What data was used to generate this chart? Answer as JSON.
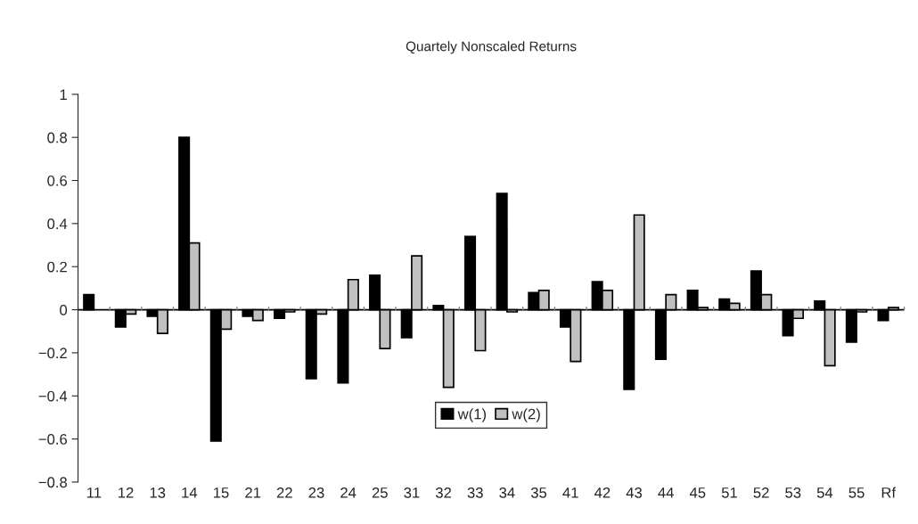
{
  "chart_data": {
    "type": "bar",
    "title": "Quartely Nonscaled Returns",
    "categories": [
      "11",
      "12",
      "13",
      "14",
      "15",
      "21",
      "22",
      "23",
      "24",
      "25",
      "31",
      "32",
      "33",
      "34",
      "35",
      "41",
      "42",
      "43",
      "44",
      "45",
      "51",
      "52",
      "53",
      "54",
      "55",
      "Rf"
    ],
    "series": [
      {
        "name": "w(1)",
        "color": "#000000",
        "values": [
          0.07,
          -0.08,
          -0.03,
          0.8,
          -0.61,
          -0.03,
          -0.04,
          -0.32,
          -0.34,
          0.16,
          -0.13,
          0.02,
          0.34,
          0.54,
          0.08,
          -0.08,
          0.13,
          -0.37,
          -0.23,
          0.09,
          0.05,
          0.18,
          -0.12,
          0.04,
          -0.15,
          -0.05
        ]
      },
      {
        "name": "w(2)",
        "color": "#c0c0c0",
        "values": [
          null,
          -0.02,
          -0.11,
          0.31,
          -0.09,
          -0.05,
          -0.01,
          -0.02,
          0.14,
          -0.18,
          0.25,
          -0.36,
          -0.19,
          -0.01,
          0.09,
          -0.24,
          0.09,
          0.44,
          0.07,
          0.01,
          0.03,
          0.07,
          -0.04,
          -0.26,
          -0.01,
          0.01
        ]
      }
    ],
    "ylim": [
      -0.8,
      1
    ],
    "yticks": [
      -0.8,
      -0.6,
      -0.4,
      -0.2,
      0,
      0.2,
      0.4,
      0.6,
      0.8,
      1
    ],
    "ref_lines": [
      {
        "axis": "y",
        "value": 0,
        "color": "#000000"
      }
    ],
    "grid": false,
    "legend": "bottom"
  }
}
